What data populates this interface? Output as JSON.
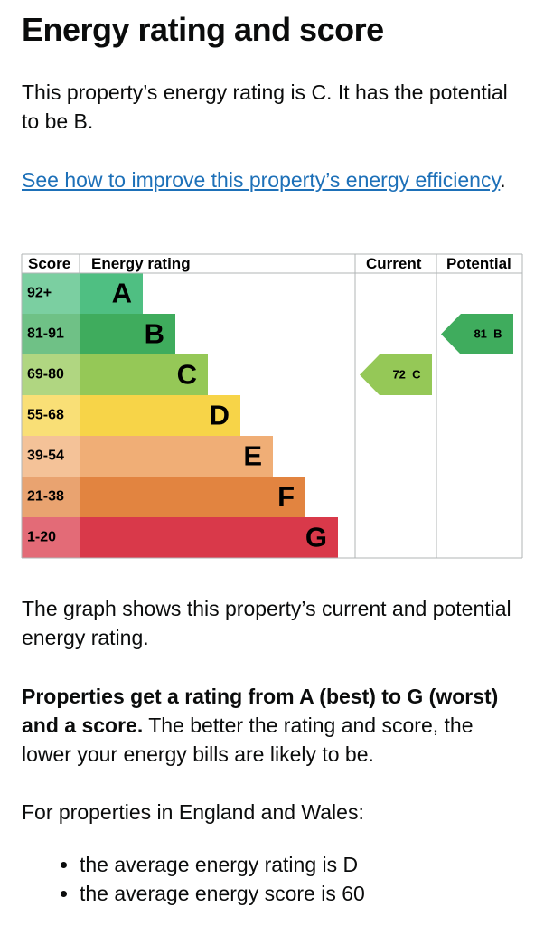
{
  "title": "Energy rating and score",
  "intro": "This property’s energy rating is C. It has the potential to be B.",
  "link": "See how to improve this property’s energy efficiency",
  "link_suffix": ".",
  "epc": {
    "headers": [
      "Score",
      "Energy rating",
      "Current",
      "Potential"
    ],
    "bands": [
      {
        "score": "92+",
        "letter": "A",
        "color": "#4fbf82"
      },
      {
        "score": "81-91",
        "letter": "B",
        "color": "#3fac5d"
      },
      {
        "score": "69-80",
        "letter": "C",
        "color": "#95c857"
      },
      {
        "score": "55-68",
        "letter": "D",
        "color": "#f7d448"
      },
      {
        "score": "39-54",
        "letter": "E",
        "color": "#f0ae76"
      },
      {
        "score": "21-38",
        "letter": "F",
        "color": "#e28440"
      },
      {
        "score": "1-20",
        "letter": "G",
        "color": "#d9394a"
      }
    ],
    "current": {
      "score": 72,
      "letter": "C"
    },
    "potential": {
      "score": 81,
      "letter": "B"
    }
  },
  "graph_text": "The graph shows this property’s current and potential energy rating.",
  "rating_text": {
    "bold": "Properties get a rating from A (best) to G (worst) and a score.",
    "rest": " The better the rating and score, the lower your energy bills are likely to be."
  },
  "region_text": "For properties in England and Wales:",
  "bullets": [
    "the average energy rating is D",
    "the average energy score is 60"
  ]
}
